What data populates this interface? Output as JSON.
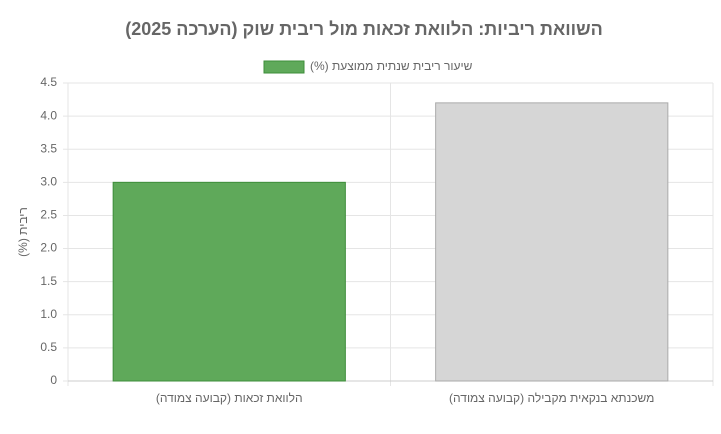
{
  "chart_data": {
    "type": "bar",
    "title": "השוואת ריביות: הלוואת זכאות מול ריבית שוק (הערכה 2025)",
    "y_label": "ריבית (%)",
    "categories": [
      "הלוואת זכאות (קבועה צמודה)",
      "משכנתא בנקאית מקבילה (קבועה צמודה)"
    ],
    "series": [
      {
        "name": "שיעור ריבית שנתית ממוצעת (%)",
        "color": "#5fa95a",
        "colors": [
          "#5fa95a",
          "#d6d6d6"
        ],
        "values": [
          3.0,
          4.2
        ]
      }
    ],
    "ylim": [
      0,
      4.5
    ],
    "yticks": [
      0,
      0.5,
      {
        "value": 1,
        "label": "1.0"
      },
      1.5,
      {
        "value": 2,
        "label": "2.0"
      },
      2.5,
      {
        "value": 3,
        "label": "3.0"
      },
      3.5,
      {
        "value": 4,
        "label": "4.0"
      },
      4.5
    ],
    "grid": true
  }
}
